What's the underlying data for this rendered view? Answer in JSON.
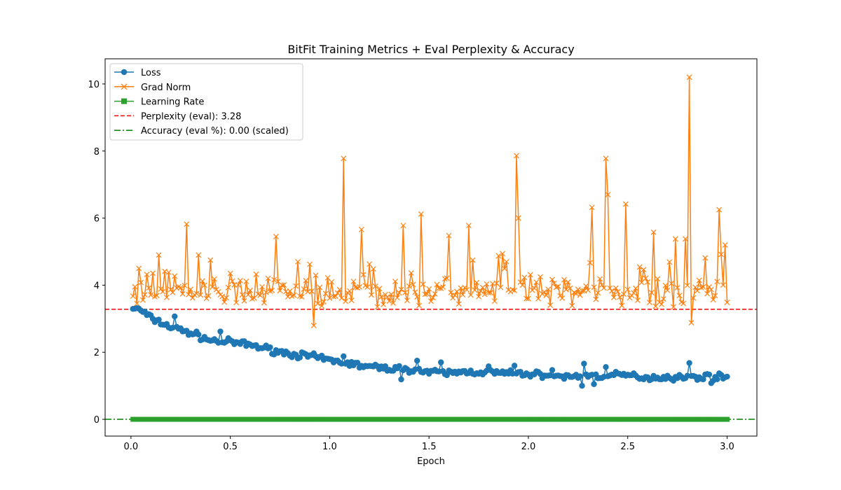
{
  "chart_data": {
    "type": "line",
    "title": "BitFit Training Metrics + Eval Perplexity & Accuracy",
    "xlabel": "Epoch",
    "ylabel": "",
    "xlim": [
      -0.13,
      3.15
    ],
    "ylim": [
      -0.5,
      10.75
    ],
    "xticks": [
      0.0,
      0.5,
      1.0,
      1.5,
      2.0,
      2.5,
      3.0
    ],
    "xtick_labels": [
      "0.0",
      "0.5",
      "1.0",
      "1.5",
      "2.0",
      "2.5",
      "3.0"
    ],
    "yticks": [
      0,
      2,
      4,
      6,
      8,
      10
    ],
    "ytick_labels": [
      "0",
      "2",
      "4",
      "6",
      "8",
      "10"
    ],
    "grid": false,
    "legend_position": "top-left",
    "num_points": 300,
    "x_start": 0.01,
    "x_end": 3.0,
    "series": [
      {
        "name": "Loss",
        "color": "#1f77b4",
        "marker": "circle",
        "knots": [
          [
            0.01,
            3.32
          ],
          [
            0.05,
            3.25
          ],
          [
            0.1,
            3.02
          ],
          [
            0.2,
            2.75
          ],
          [
            0.3,
            2.58
          ],
          [
            0.4,
            2.35
          ],
          [
            0.5,
            2.3
          ],
          [
            0.6,
            2.22
          ],
          [
            0.7,
            2.08
          ],
          [
            0.8,
            1.95
          ],
          [
            0.9,
            1.88
          ],
          [
            1.0,
            1.76
          ],
          [
            1.1,
            1.66
          ],
          [
            1.2,
            1.56
          ],
          [
            1.3,
            1.52
          ],
          [
            1.4,
            1.5
          ],
          [
            1.5,
            1.4
          ],
          [
            1.6,
            1.38
          ],
          [
            1.7,
            1.42
          ],
          [
            1.8,
            1.4
          ],
          [
            1.9,
            1.37
          ],
          [
            2.0,
            1.35
          ],
          [
            2.1,
            1.33
          ],
          [
            2.2,
            1.26
          ],
          [
            2.3,
            1.32
          ],
          [
            2.4,
            1.3
          ],
          [
            2.5,
            1.32
          ],
          [
            2.6,
            1.24
          ],
          [
            2.7,
            1.26
          ],
          [
            2.8,
            1.24
          ],
          [
            2.9,
            1.28
          ],
          [
            3.0,
            1.25
          ]
        ],
        "noise": 0.14,
        "spikes": [
          [
            0.22,
            3.07
          ],
          [
            0.45,
            2.62
          ],
          [
            1.07,
            1.88
          ],
          [
            1.36,
            1.19
          ],
          [
            1.44,
            1.75
          ],
          [
            1.56,
            1.7
          ],
          [
            1.8,
            1.58
          ],
          [
            1.93,
            1.6
          ],
          [
            2.12,
            1.47
          ],
          [
            2.27,
            1.0
          ],
          [
            2.28,
            1.66
          ],
          [
            2.33,
            1.05
          ],
          [
            2.39,
            1.56
          ],
          [
            2.81,
            1.68
          ],
          [
            2.92,
            1.08
          ]
        ]
      },
      {
        "name": "Grad Norm",
        "color": "#ff7f0e",
        "marker": "x",
        "base": 3.8,
        "noise": 0.65,
        "spikes": [
          [
            0.04,
            4.5
          ],
          [
            0.14,
            4.9
          ],
          [
            0.28,
            5.82
          ],
          [
            0.34,
            4.9
          ],
          [
            0.73,
            5.45
          ],
          [
            0.84,
            4.7
          ],
          [
            0.92,
            2.8
          ],
          [
            1.07,
            7.78
          ],
          [
            1.16,
            5.66
          ],
          [
            1.37,
            5.78
          ],
          [
            1.46,
            6.12
          ],
          [
            1.6,
            5.48
          ],
          [
            1.7,
            5.78
          ],
          [
            1.94,
            7.86
          ],
          [
            1.95,
            6.0
          ],
          [
            2.32,
            6.32
          ],
          [
            2.39,
            7.78
          ],
          [
            2.4,
            6.7
          ],
          [
            2.49,
            6.42
          ],
          [
            2.63,
            5.58
          ],
          [
            2.74,
            5.38
          ],
          [
            2.79,
            5.38
          ],
          [
            2.81,
            10.2
          ],
          [
            2.82,
            2.88
          ],
          [
            2.96,
            6.25
          ],
          [
            2.99,
            5.2
          ]
        ]
      },
      {
        "name": "Learning Rate",
        "color": "#2ca02c",
        "marker": "square",
        "start": 0.0005,
        "end": 0.0
      }
    ],
    "hlines": [
      {
        "name": "Perplexity (eval): 3.28",
        "y": 3.28,
        "color": "#ff0000",
        "style": "dashed"
      },
      {
        "name": "Accuracy (eval %): 0.00 (scaled)",
        "y": 0.0,
        "color": "#008000",
        "style": "dashdot"
      }
    ]
  }
}
